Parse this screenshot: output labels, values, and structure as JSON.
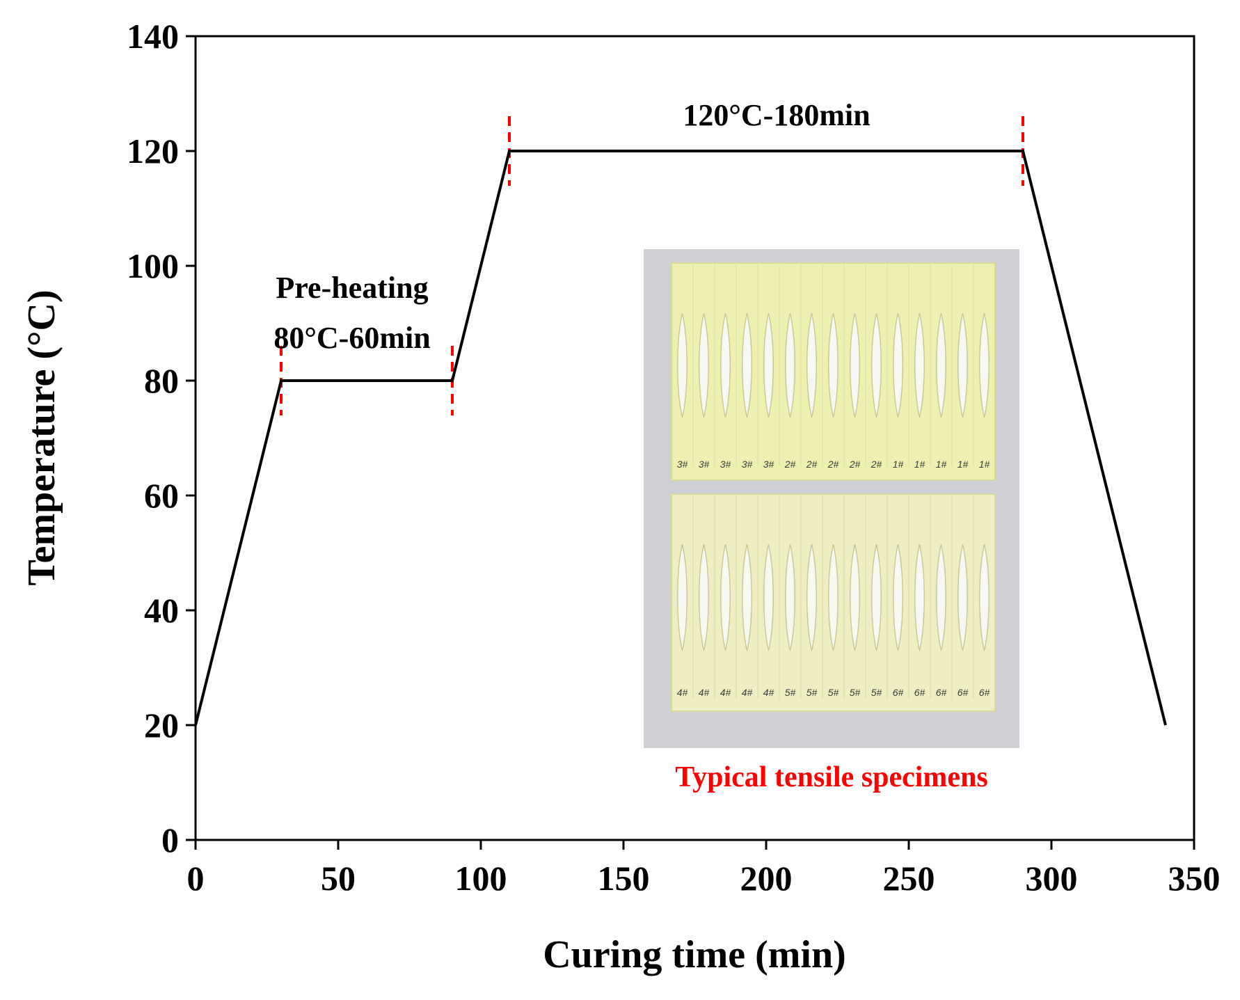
{
  "chart_data": {
    "type": "line",
    "title": "",
    "xlabel": "Curing time (min)",
    "ylabel": "Temperature (°C)",
    "xlim": [
      0,
      350
    ],
    "ylim": [
      0,
      140
    ],
    "xticks": [
      0,
      50,
      100,
      150,
      200,
      250,
      300,
      350
    ],
    "yticks": [
      0,
      20,
      40,
      60,
      80,
      100,
      120,
      140
    ],
    "grid": false,
    "legend": "none",
    "series": [
      {
        "color": "#000000",
        "x": [
          0,
          30,
          90,
          110,
          290,
          340
        ],
        "y": [
          20,
          80,
          80,
          120,
          120,
          20
        ]
      }
    ],
    "markers": {
      "color": "#ff0000",
      "style": "dashed vertical",
      "points": [
        {
          "x": 30,
          "y": 80
        },
        {
          "x": 90,
          "y": 80
        },
        {
          "x": 110,
          "y": 120
        },
        {
          "x": 290,
          "y": 120
        }
      ]
    },
    "annotations": {
      "preheat_line1": "Pre-heating",
      "preheat_line2": "80°C-60min",
      "hold": "120°C-180min"
    },
    "inset": {
      "caption": "Typical tensile specimens",
      "caption_color": "#ff0000",
      "top_row_labels": [
        "3#",
        "3#",
        "3#",
        "3#",
        "3#",
        "2#",
        "2#",
        "2#",
        "2#",
        "2#",
        "1#",
        "1#",
        "1#",
        "1#",
        "1#"
      ],
      "bottom_row_labels": [
        "4#",
        "4#",
        "4#",
        "4#",
        "4#",
        "5#",
        "5#",
        "5#",
        "5#",
        "5#",
        "6#",
        "6#",
        "6#",
        "6#",
        "6#"
      ]
    }
  }
}
